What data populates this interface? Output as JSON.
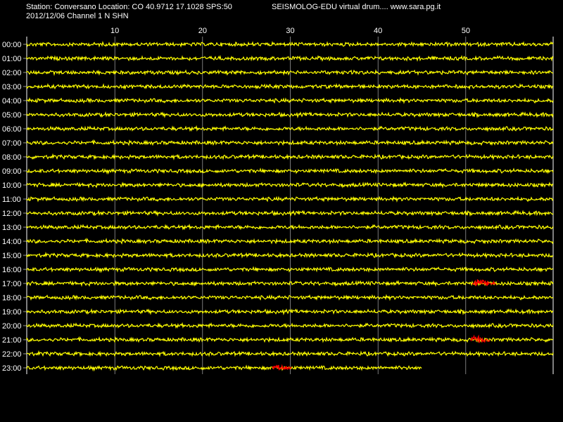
{
  "header": {
    "station_line": "Station: Conversano Location: CO 40.9712 17.1028 SPS:50",
    "date_line": "2012/12/06  Channel 1 N SHN",
    "app_line": "SEISMOLOG-EDU virtual drum.... www.sara.pg.it"
  },
  "colors": {
    "background": "#000000",
    "trace": "#ffff00",
    "event": "#ff0000",
    "grid": "#ffffff",
    "text": "#ffffff"
  },
  "chart_data": {
    "type": "line",
    "title": "",
    "xlabel": "",
    "ylabel": "",
    "x_unit_minutes": true,
    "xlim": [
      0,
      60
    ],
    "x_ticks": [
      10,
      20,
      30,
      40,
      50
    ],
    "grid": true,
    "rows": [
      "00:00",
      "01:00",
      "02:00",
      "03:00",
      "04:00",
      "05:00",
      "06:00",
      "07:00",
      "08:00",
      "09:00",
      "10:00",
      "11:00",
      "12:00",
      "13:00",
      "14:00",
      "15:00",
      "16:00",
      "17:00",
      "18:00",
      "19:00",
      "20:00",
      "21:00",
      "22:00",
      "23:00"
    ],
    "last_row_end_minute": 45,
    "events": [
      {
        "row": "17:00",
        "start_minute": 50.8,
        "end_minute": 53.5,
        "amplitude": "high"
      },
      {
        "row": "21:00",
        "start_minute": 50.6,
        "end_minute": 52.8,
        "amplitude": "high"
      },
      {
        "row": "23:00",
        "start_minute": 28.0,
        "end_minute": 30.2,
        "amplitude": "medium"
      }
    ]
  }
}
